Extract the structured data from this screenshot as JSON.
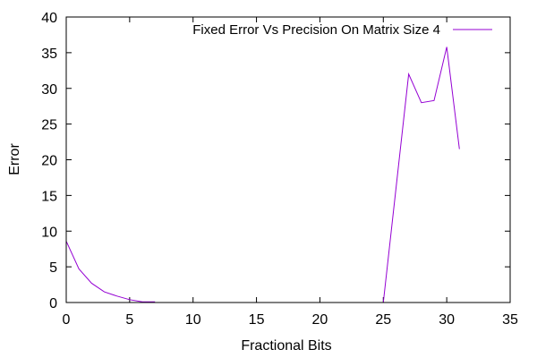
{
  "chart_data": {
    "type": "line",
    "title": "",
    "xlabel": "Fractional Bits",
    "ylabel": "Error",
    "xlim": [
      0,
      35
    ],
    "ylim": [
      0,
      40
    ],
    "xticks": [
      "0",
      "5",
      "10",
      "15",
      "20",
      "25",
      "30",
      "35"
    ],
    "yticks": [
      "0",
      "5",
      "10",
      "15",
      "20",
      "25",
      "30",
      "35",
      "40"
    ],
    "grid": false,
    "legend_position": "top-right",
    "series": [
      {
        "name": "Fixed Error Vs Precision On Matrix Size 4",
        "color": "#9400d3",
        "x": [
          0,
          1,
          2,
          3,
          4,
          5,
          6,
          7,
          8,
          9,
          10,
          11,
          12,
          13,
          14,
          15,
          16,
          17,
          18,
          19,
          20,
          21,
          22,
          23,
          24,
          25,
          26,
          27,
          28,
          29,
          30,
          31
        ],
        "y": [
          8.6,
          4.7,
          2.7,
          1.5,
          0.9,
          0.4,
          0.1,
          0.1,
          null,
          null,
          null,
          null,
          null,
          null,
          null,
          null,
          null,
          null,
          null,
          null,
          null,
          null,
          null,
          null,
          null,
          0,
          16,
          32,
          28,
          28.3,
          35.8,
          21.5
        ]
      }
    ]
  }
}
